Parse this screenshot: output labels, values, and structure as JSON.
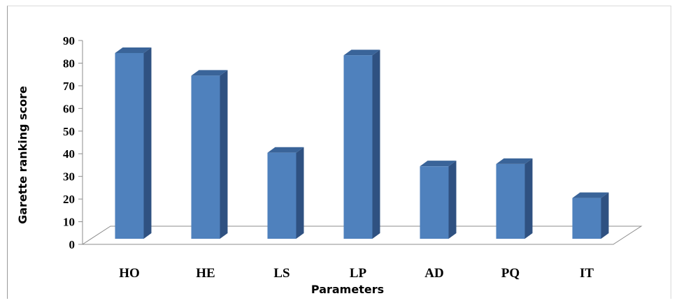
{
  "chart_data": {
    "type": "bar",
    "style": "3d-column",
    "categories": [
      "HO",
      "HE",
      "LS",
      "LP",
      "AD",
      "PQ",
      "IT"
    ],
    "values": [
      82,
      72,
      38,
      81,
      32,
      33,
      18
    ],
    "title": "",
    "xlabel": "Parameters",
    "ylabel": "Garette ranking  score",
    "ylim": [
      0,
      90
    ],
    "yticks": [
      0,
      10,
      20,
      30,
      40,
      50,
      60,
      70,
      80,
      90
    ],
    "grid": false,
    "legend": "none",
    "colors": {
      "bar_front": "#4f81bd",
      "bar_side": "#2f5181",
      "bar_top": "#3a6499"
    }
  }
}
